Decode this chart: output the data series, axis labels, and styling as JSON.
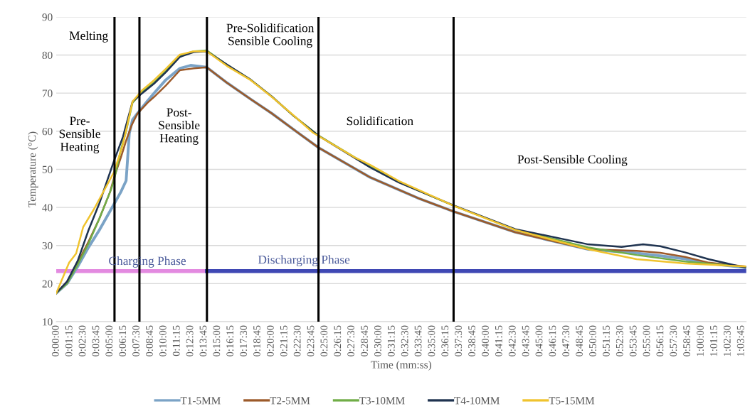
{
  "chart_data": {
    "type": "line",
    "xlabel": "Time (mm:ss)",
    "ylabel": "Temperature (°C)",
    "xlim": [
      0,
      64.2
    ],
    "ylim": [
      10,
      90
    ],
    "yticks": [
      10,
      20,
      30,
      40,
      50,
      60,
      70,
      80,
      90
    ],
    "xticks": [
      {
        "value": 0,
        "label": "0:00:00"
      },
      {
        "value": 1.25,
        "label": "0:01:15"
      },
      {
        "value": 2.5,
        "label": "0:02:30"
      },
      {
        "value": 3.75,
        "label": "0:03:45"
      },
      {
        "value": 5,
        "label": "0:05:00"
      },
      {
        "value": 6.25,
        "label": "0:06:15"
      },
      {
        "value": 7.5,
        "label": "0:07:30"
      },
      {
        "value": 8.75,
        "label": "0:08:45"
      },
      {
        "value": 10,
        "label": "0:10:00"
      },
      {
        "value": 11.25,
        "label": "0:11:15"
      },
      {
        "value": 12.5,
        "label": "0:12:30"
      },
      {
        "value": 13.75,
        "label": "0:13:45"
      },
      {
        "value": 15,
        "label": "0:15:00"
      },
      {
        "value": 16.25,
        "label": "0:16:15"
      },
      {
        "value": 17.5,
        "label": "0:17:30"
      },
      {
        "value": 18.75,
        "label": "0:18:45"
      },
      {
        "value": 20,
        "label": "0:20:00"
      },
      {
        "value": 21.25,
        "label": "0:21:15"
      },
      {
        "value": 22.5,
        "label": "0:22:30"
      },
      {
        "value": 23.75,
        "label": "0:23:45"
      },
      {
        "value": 25,
        "label": "0:25:00"
      },
      {
        "value": 26.25,
        "label": "0:26:15"
      },
      {
        "value": 27.5,
        "label": "0:27:30"
      },
      {
        "value": 28.75,
        "label": "0:28:45"
      },
      {
        "value": 30,
        "label": "0:30:00"
      },
      {
        "value": 31.25,
        "label": "0:31:15"
      },
      {
        "value": 32.5,
        "label": "0:32:30"
      },
      {
        "value": 33.75,
        "label": "0:33:45"
      },
      {
        "value": 35,
        "label": "0:35:00"
      },
      {
        "value": 36.25,
        "label": "0:36:15"
      },
      {
        "value": 37.5,
        "label": "0:37:30"
      },
      {
        "value": 38.75,
        "label": "0:38:45"
      },
      {
        "value": 40,
        "label": "0:40:00"
      },
      {
        "value": 41.25,
        "label": "0:41:15"
      },
      {
        "value": 42.5,
        "label": "0:42:30"
      },
      {
        "value": 43.75,
        "label": "0:43:45"
      },
      {
        "value": 45,
        "label": "0:45:00"
      },
      {
        "value": 46.25,
        "label": "0:46:15"
      },
      {
        "value": 47.5,
        "label": "0:47:30"
      },
      {
        "value": 48.75,
        "label": "0:48:45"
      },
      {
        "value": 50,
        "label": "0:50:00"
      },
      {
        "value": 51.25,
        "label": "0:51:15"
      },
      {
        "value": 52.5,
        "label": "0:52:30"
      },
      {
        "value": 53.75,
        "label": "0:53:45"
      },
      {
        "value": 55,
        "label": "0:55:00"
      },
      {
        "value": 56.25,
        "label": "0:56:15"
      },
      {
        "value": 57.5,
        "label": "0:57:30"
      },
      {
        "value": 58.75,
        "label": "0:58:45"
      },
      {
        "value": 60,
        "label": "1:00:00"
      },
      {
        "value": 61.25,
        "label": "1:01:15"
      },
      {
        "value": 62.5,
        "label": "1:02:30"
      },
      {
        "value": 63.75,
        "label": "1:03:45"
      }
    ],
    "grid": "y",
    "legend": "bottom",
    "marker": "none",
    "line_style": "solid",
    "series": [
      {
        "name": "T1-5MM",
        "color": "#7ba3c6",
        "x": [
          0,
          1,
          2,
          3,
          4,
          5,
          5.4,
          6,
          6.5,
          6.8,
          7.1,
          7.5,
          8.5,
          9.1,
          10.2,
          11.5,
          12.5,
          14,
          15.9,
          18.1,
          20.1,
          22.5,
          24.4,
          29.2,
          33.7,
          37,
          42.7,
          49.5,
          54,
          56.2,
          58.5,
          60.7,
          64.1
        ],
        "values": [
          17.5,
          20,
          24.5,
          29.5,
          34,
          39,
          41,
          44,
          47,
          59.5,
          63,
          64.5,
          68,
          70,
          73.5,
          76.5,
          77.3,
          76.8,
          72.7,
          68.4,
          64.6,
          59.6,
          55.7,
          47.9,
          42.4,
          38.9,
          33.5,
          29,
          28,
          27.3,
          26.5,
          25.3,
          24.2
        ]
      },
      {
        "name": "T2-5MM",
        "color": "#9c5a2a",
        "x": [
          0,
          1,
          2,
          3,
          4,
          5,
          5.4,
          6,
          6.5,
          7,
          7.55,
          8.5,
          9.1,
          10.2,
          11.5,
          12.8,
          14,
          15.9,
          18.1,
          20.1,
          22.5,
          24.4,
          29.2,
          33.7,
          37,
          42.7,
          49.5,
          54,
          56.2,
          58.5,
          60.7,
          64.1
        ],
        "values": [
          17.5,
          20.5,
          25.5,
          31,
          37,
          44,
          48,
          53,
          57.5,
          61.5,
          64.6,
          67.5,
          69,
          72,
          76,
          76.5,
          76.8,
          72.7,
          68.4,
          64.6,
          59.6,
          55.7,
          47.9,
          42.4,
          38.9,
          33.5,
          29,
          28.6,
          28.1,
          27,
          25.5,
          24.5
        ]
      },
      {
        "name": "T3-10MM",
        "color": "#70ad47",
        "x": [
          0,
          1,
          2,
          3,
          4,
          5.1,
          5.4,
          6,
          6.5,
          7.1,
          8,
          9.1,
          10.2,
          11.5,
          12.8,
          14,
          15.9,
          18.1,
          20.1,
          22.1,
          24.4,
          29.2,
          31.9,
          37,
          42.7,
          49.5,
          54,
          58.5,
          64.1
        ],
        "values": [
          17.5,
          20,
          25,
          30.5,
          37,
          44.7,
          47.5,
          55,
          60,
          67.5,
          70.3,
          72.8,
          75.8,
          79.8,
          81,
          81.2,
          77.4,
          73.5,
          69,
          64,
          58.9,
          50.7,
          46.6,
          40.4,
          34.2,
          29.5,
          27.5,
          25.8,
          24.4
        ]
      },
      {
        "name": "T4-10MM",
        "color": "#1f3350",
        "x": [
          0,
          1,
          2,
          2.5,
          3,
          4,
          5.36,
          6.2,
          7.1,
          8,
          9.1,
          10.2,
          11.5,
          12.8,
          14,
          15.9,
          18.1,
          20.1,
          22.1,
          24.4,
          29.2,
          31.9,
          37,
          42.7,
          49.5,
          52.6,
          54.6,
          56.2,
          58.5,
          60.7,
          64.1
        ],
        "values": [
          17.5,
          20.5,
          26,
          30,
          34,
          41,
          52.1,
          58.5,
          67.8,
          70,
          72.5,
          75.5,
          79.5,
          80.8,
          81,
          77.5,
          73.5,
          69,
          64,
          58.8,
          50.5,
          46.5,
          40.5,
          34.3,
          30.3,
          29.6,
          30.3,
          29.8,
          28.2,
          26.4,
          24.2
        ]
      },
      {
        "name": "T5-15MM",
        "color": "#f0c32e",
        "x": [
          0,
          1.2,
          1.85,
          2.5,
          3.5,
          4.5,
          5.36,
          6.2,
          7.1,
          8,
          9.1,
          10.2,
          11.5,
          12.8,
          14,
          15.9,
          18.1,
          20.1,
          22.1,
          23.9,
          27.8,
          29.2,
          31.9,
          37,
          42.7,
          49.5,
          54,
          58.5,
          64.1
        ],
        "values": [
          17.5,
          25.5,
          27.9,
          34.8,
          39.5,
          44.7,
          49.2,
          56.5,
          67.8,
          70.8,
          73.4,
          76.4,
          80.1,
          81,
          81,
          77.1,
          73.4,
          68.9,
          64.1,
          59.6,
          53.1,
          51.2,
          46.9,
          40.4,
          34.1,
          29,
          26.4,
          25.3,
          24.5
        ]
      },
      {
        "type": "line",
        "color": "#e38ae0",
        "x": [
          0,
          14.02
        ],
        "values": [
          23.3,
          23.3
        ]
      },
      {
        "type": "line",
        "color": "#3f48b4",
        "x": [
          14.02,
          64.2
        ],
        "values": [
          23.3,
          23.3
        ]
      }
    ],
    "ref_lines": [
      {
        "axis": "x",
        "value": 5.42,
        "color": "#000000"
      },
      {
        "axis": "x",
        "value": 7.74,
        "color": "#000000"
      },
      {
        "axis": "x",
        "value": 14.02,
        "color": "#000000"
      },
      {
        "axis": "x",
        "value": 24.4,
        "color": "#000000"
      },
      {
        "axis": "x",
        "value": 36.97,
        "color": "#000000"
      }
    ],
    "annotations": [
      "Melting",
      "Pre-\nSensible\nHeating",
      "Post-\nSensible\nHeating",
      "Pre-Solidification\nSensible Cooling",
      "Solidification",
      "Post-Sensible Cooling",
      "Charging Phase",
      "Discharging Phase"
    ]
  }
}
